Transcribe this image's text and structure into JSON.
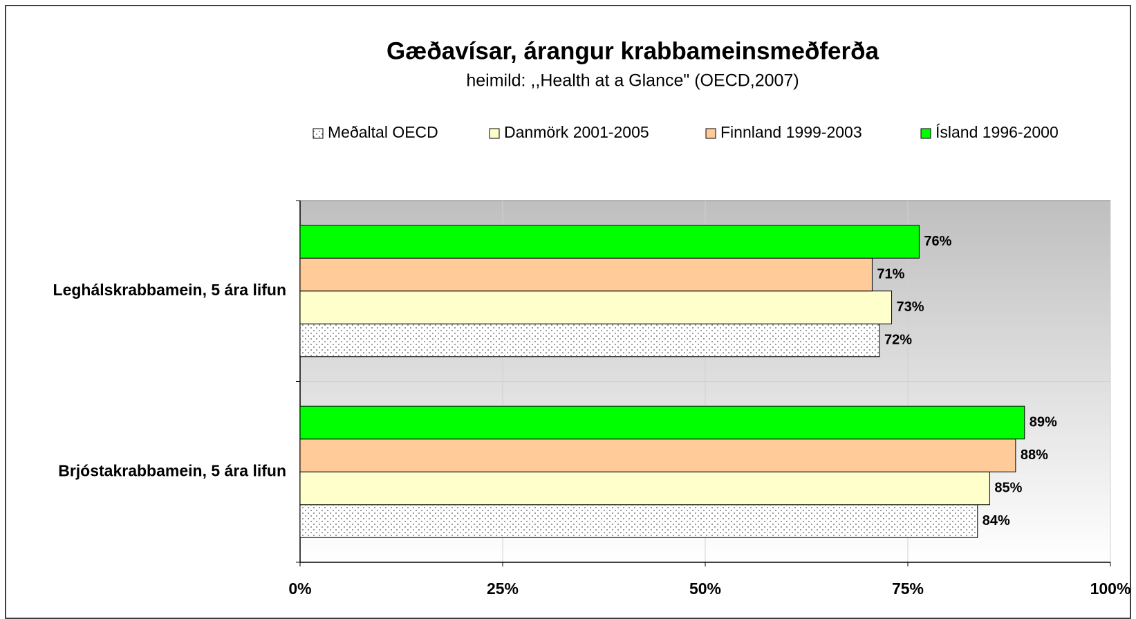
{
  "chart_data": {
    "type": "hbar",
    "title": "Gæðavísar, árangur krabbameinsmeðferða",
    "subtitle": "heimild: ,,Health at a Glance\" (OECD,2007)",
    "categories": [
      "Leghálskrabbamein, 5 ára lifun",
      "Brjóstakrabbamein, 5 ára lifun"
    ],
    "series": [
      {
        "name": "Meðaltal OECD",
        "color": "#ffffff",
        "pattern": "dots",
        "values": [
          71.5,
          83.6
        ],
        "value_labels": [
          "72%",
          "84%"
        ]
      },
      {
        "name": "Danmörk 2001-2005",
        "color": "#ffffcc",
        "values": [
          73.0,
          85.1
        ],
        "value_labels": [
          "73%",
          "85%"
        ]
      },
      {
        "name": "Finnland 1999-2003",
        "color": "#ffcc99",
        "values": [
          70.6,
          88.3
        ],
        "value_labels": [
          "71%",
          "88%"
        ]
      },
      {
        "name": "Ísland 1996-2000",
        "color": "#00ff00",
        "values": [
          76.4,
          89.4
        ],
        "value_labels": [
          "76%",
          "89%"
        ]
      }
    ],
    "xlim": [
      0,
      100
    ],
    "xticks": [
      {
        "value": 0,
        "label": "0%"
      },
      {
        "value": 25,
        "label": "25%"
      },
      {
        "value": 50,
        "label": "50%"
      },
      {
        "value": 75,
        "label": "75%"
      },
      {
        "value": 100,
        "label": "100%"
      }
    ],
    "grid": true,
    "legend": "top"
  }
}
